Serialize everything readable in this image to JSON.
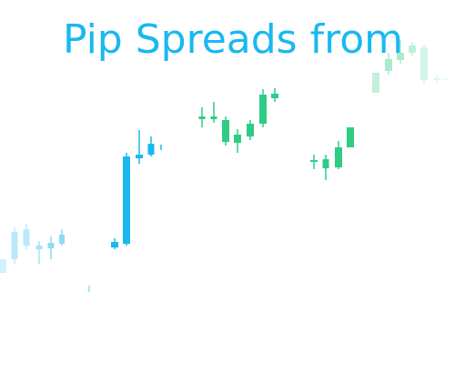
{
  "header": {
    "title": "Pip Spreads from"
  }
}
